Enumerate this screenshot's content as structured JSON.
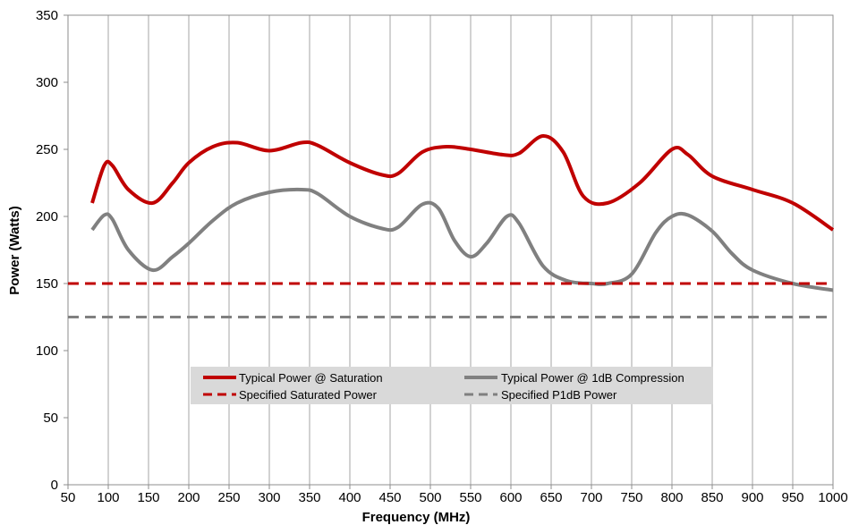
{
  "chart_data": {
    "type": "line",
    "xlabel": "Frequency (MHz)",
    "ylabel": "Power (Watts)",
    "xlim": [
      50,
      1000
    ],
    "ylim": [
      0,
      350
    ],
    "xticks": [
      50,
      100,
      150,
      200,
      250,
      300,
      350,
      400,
      450,
      500,
      550,
      600,
      650,
      700,
      750,
      800,
      850,
      900,
      950,
      1000
    ],
    "yticks": [
      0,
      50,
      100,
      150,
      200,
      250,
      300,
      350
    ],
    "grid": "vertical",
    "legend_position": "bottom-center",
    "series": [
      {
        "name": "Typical Power @ Saturation",
        "style": "solid",
        "color": "#C00000",
        "x": [
          80,
          95,
          105,
          125,
          155,
          180,
          200,
          230,
          260,
          300,
          340,
          360,
          400,
          440,
          460,
          490,
          520,
          550,
          590,
          610,
          640,
          665,
          690,
          720,
          760,
          800,
          820,
          850,
          900,
          950,
          1000
        ],
        "y": [
          210,
          238,
          238,
          220,
          210,
          225,
          240,
          252,
          255,
          249,
          255,
          253,
          240,
          231,
          232,
          248,
          252,
          250,
          246,
          247,
          260,
          248,
          215,
          210,
          225,
          250,
          246,
          230,
          220,
          210,
          190
        ]
      },
      {
        "name": "Typical Power @ 1dB Compression",
        "style": "solid",
        "color": "#808080",
        "x": [
          80,
          95,
          105,
          125,
          155,
          180,
          200,
          230,
          260,
          300,
          340,
          360,
          400,
          440,
          460,
          490,
          510,
          530,
          550,
          570,
          595,
          610,
          640,
          670,
          700,
          720,
          750,
          780,
          800,
          820,
          850,
          875,
          900,
          950,
          1000
        ],
        "y": [
          190,
          201,
          198,
          175,
          160,
          170,
          180,
          197,
          210,
          218,
          220,
          217,
          200,
          191,
          192,
          209,
          206,
          182,
          170,
          180,
          200,
          195,
          163,
          152,
          150,
          150,
          157,
          188,
          200,
          201,
          189,
          172,
          160,
          150,
          145
        ]
      },
      {
        "name": "Specified Saturated Power",
        "style": "dashed",
        "color": "#C00000",
        "x": [
          50,
          1000
        ],
        "y": [
          150,
          150
        ]
      },
      {
        "name": "Specified P1dB Power",
        "style": "dashed",
        "color": "#808080",
        "x": [
          50,
          1000
        ],
        "y": [
          125,
          125
        ]
      }
    ]
  }
}
